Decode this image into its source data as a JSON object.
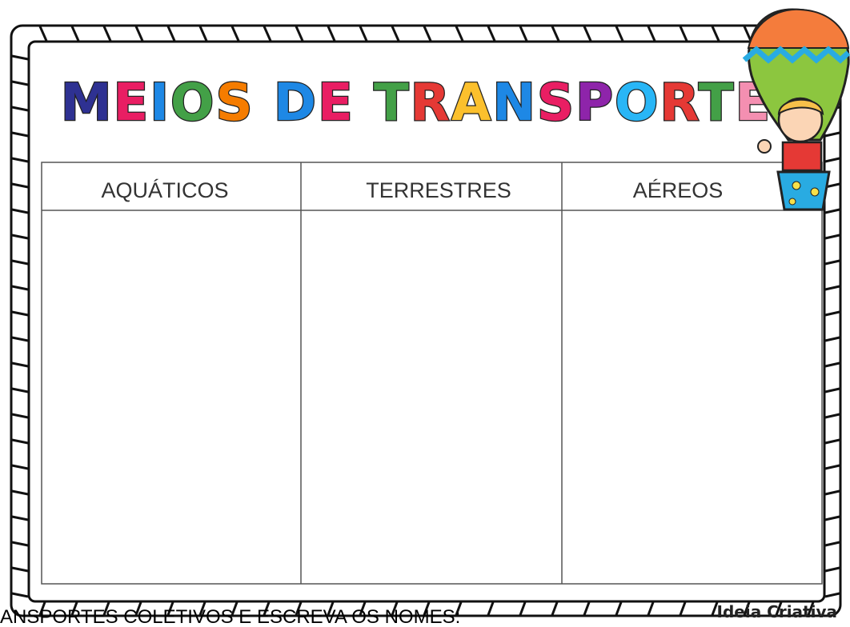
{
  "header": {
    "title": "MEIOS DE TRANSPORTE"
  },
  "table": {
    "columns": [
      "AQUÁTICOS",
      "TERRESTRES",
      "AÉREOS"
    ]
  },
  "instruction": "ANSPORTES COLETIVOS E ESCREVA OS NOMES:",
  "footer": {
    "brand": "Ideia Criativa"
  }
}
